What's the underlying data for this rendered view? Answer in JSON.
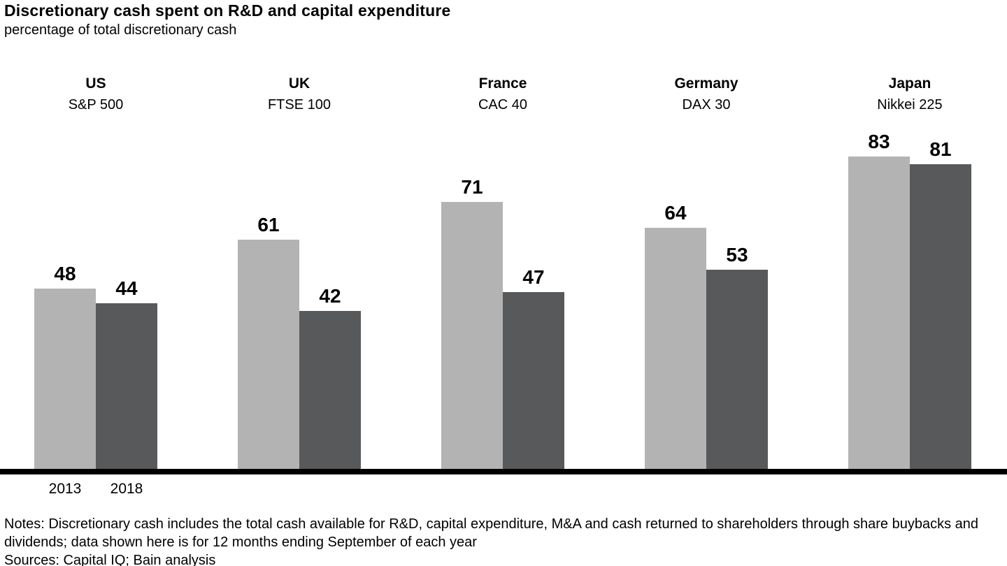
{
  "title": "Discretionary cash spent on R&D and capital expenditure",
  "subtitle": "percentage of total discretionary cash",
  "notes": {
    "line1": "Notes: Discretionary cash includes the total cash available for R&D, capital expenditure, M&A and cash returned to shareholders through share buybacks and",
    "line2": "dividends; data shown here is for 12 months ending September of each year",
    "sources": "Sources: Capital IQ; Bain analysis"
  },
  "colors": {
    "bar_2013": "#b3b3b3",
    "bar_2018": "#58595b",
    "axis": "#000000"
  },
  "chart_data": {
    "type": "bar",
    "title": "Discretionary cash spent on R&D and capital expenditure",
    "subtitle": "percentage of total discretionary cash",
    "unit": "percent of total discretionary cash",
    "categories": [
      {
        "country": "US",
        "index": "S&P 500"
      },
      {
        "country": "UK",
        "index": "FTSE 100"
      },
      {
        "country": "France",
        "index": "CAC 40"
      },
      {
        "country": "Germany",
        "index": "DAX 30"
      },
      {
        "country": "Japan",
        "index": "Nikkei 225"
      }
    ],
    "series": [
      {
        "name": "2013",
        "values": [
          48,
          61,
          71,
          64,
          83
        ]
      },
      {
        "name": "2018",
        "values": [
          44,
          42,
          47,
          53,
          81
        ]
      }
    ],
    "ylim": [
      0,
      100
    ],
    "grid": false,
    "data_labels": true,
    "legend_position": "below-first-group"
  }
}
